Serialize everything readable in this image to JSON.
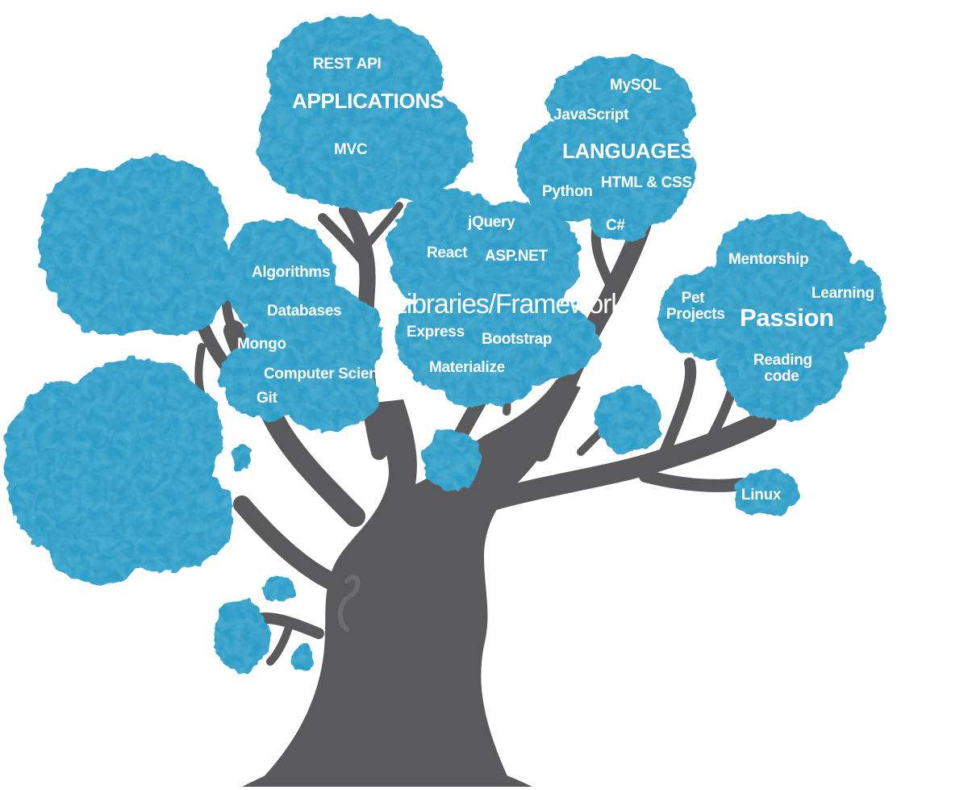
{
  "colors": {
    "foliage": "#2e9dc8",
    "foliage_light": "#4ab3db",
    "foliage_dark": "#1f86b0",
    "trunk": "#5a5a5c",
    "text": "#ffffff"
  },
  "tree": {
    "applications": {
      "title": "APPLICATIONS",
      "items": [
        "REST API",
        "MVC"
      ]
    },
    "languages": {
      "title": "LANGUAGES",
      "items": [
        "MySQL",
        "JavaScript",
        "Python",
        "HTML & CSS",
        "C#"
      ]
    },
    "fundamentals": {
      "items": [
        "Algorithms",
        "Databases",
        "Mongo",
        "Computer Science",
        "Git"
      ]
    },
    "libraries": {
      "title": "Libraries/Frameworks",
      "items": [
        "jQuery",
        "React",
        "ASP.NET",
        "Express",
        "Bootstrap",
        "Materialize"
      ]
    },
    "passion": {
      "title": "Passion",
      "items": [
        "Mentorship",
        "Learning",
        "Pet Projects",
        "Reading code"
      ]
    },
    "extra": {
      "items": [
        "Linux"
      ]
    }
  }
}
